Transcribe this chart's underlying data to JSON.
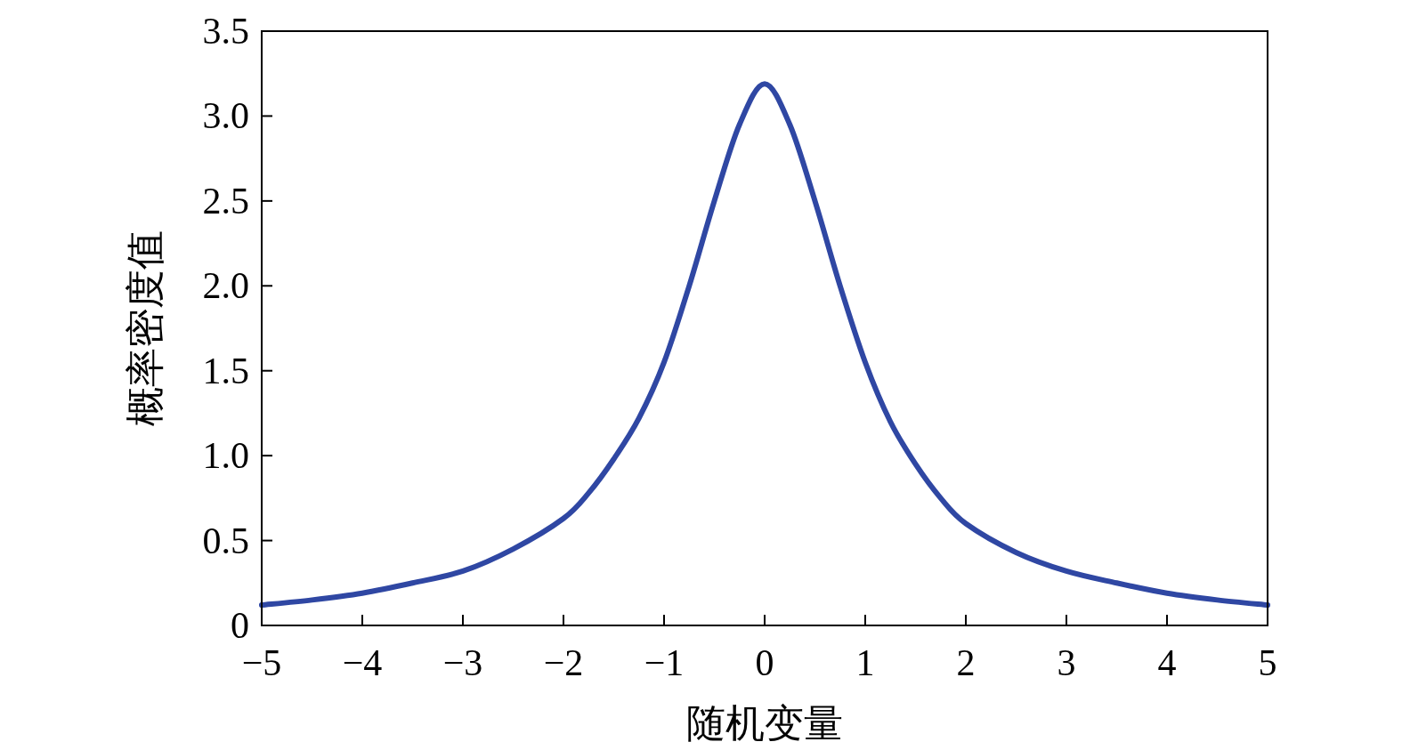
{
  "chart_data": {
    "type": "line",
    "xlabel": "随机变量",
    "ylabel": "概率密度值",
    "x": [
      -5,
      -4.5,
      -4,
      -3.5,
      -3,
      -2.5,
      -2,
      -1.75,
      -1.5,
      -1.25,
      -1,
      -0.75,
      -0.5,
      -0.25,
      0,
      0.25,
      0.5,
      0.75,
      1,
      1.25,
      1.5,
      1.75,
      2,
      2.5,
      3,
      3.5,
      4,
      4.5,
      5
    ],
    "series": [
      {
        "color": "#2f47a3",
        "values": [
          0.12,
          0.15,
          0.19,
          0.25,
          0.32,
          0.45,
          0.63,
          0.78,
          0.98,
          1.22,
          1.55,
          2.0,
          2.5,
          2.95,
          3.19,
          2.95,
          2.5,
          2.0,
          1.55,
          1.2,
          0.95,
          0.75,
          0.6,
          0.43,
          0.32,
          0.25,
          0.19,
          0.15,
          0.12
        ]
      }
    ],
    "xlim": [
      -5,
      5
    ],
    "ylim": [
      0,
      3.5
    ],
    "xticks": [
      {
        "value": -5,
        "label": "−5"
      },
      {
        "value": -4,
        "label": "−4"
      },
      {
        "value": -3,
        "label": "−3"
      },
      {
        "value": -2,
        "label": "−2"
      },
      {
        "value": -1,
        "label": "−1"
      },
      0,
      1,
      2,
      3,
      4,
      5
    ],
    "yticks": [
      0,
      {
        "value": 0.5,
        "label": "0.5"
      },
      {
        "value": 1,
        "label": "1.0"
      },
      {
        "value": 1.5,
        "label": "1.5"
      },
      {
        "value": 2,
        "label": "2.0"
      },
      {
        "value": 2.5,
        "label": "2.5"
      },
      {
        "value": 3,
        "label": "3.0"
      },
      {
        "value": 3.5,
        "label": "3.5"
      }
    ],
    "grid": false,
    "marker": "none",
    "line_style": "solid"
  }
}
